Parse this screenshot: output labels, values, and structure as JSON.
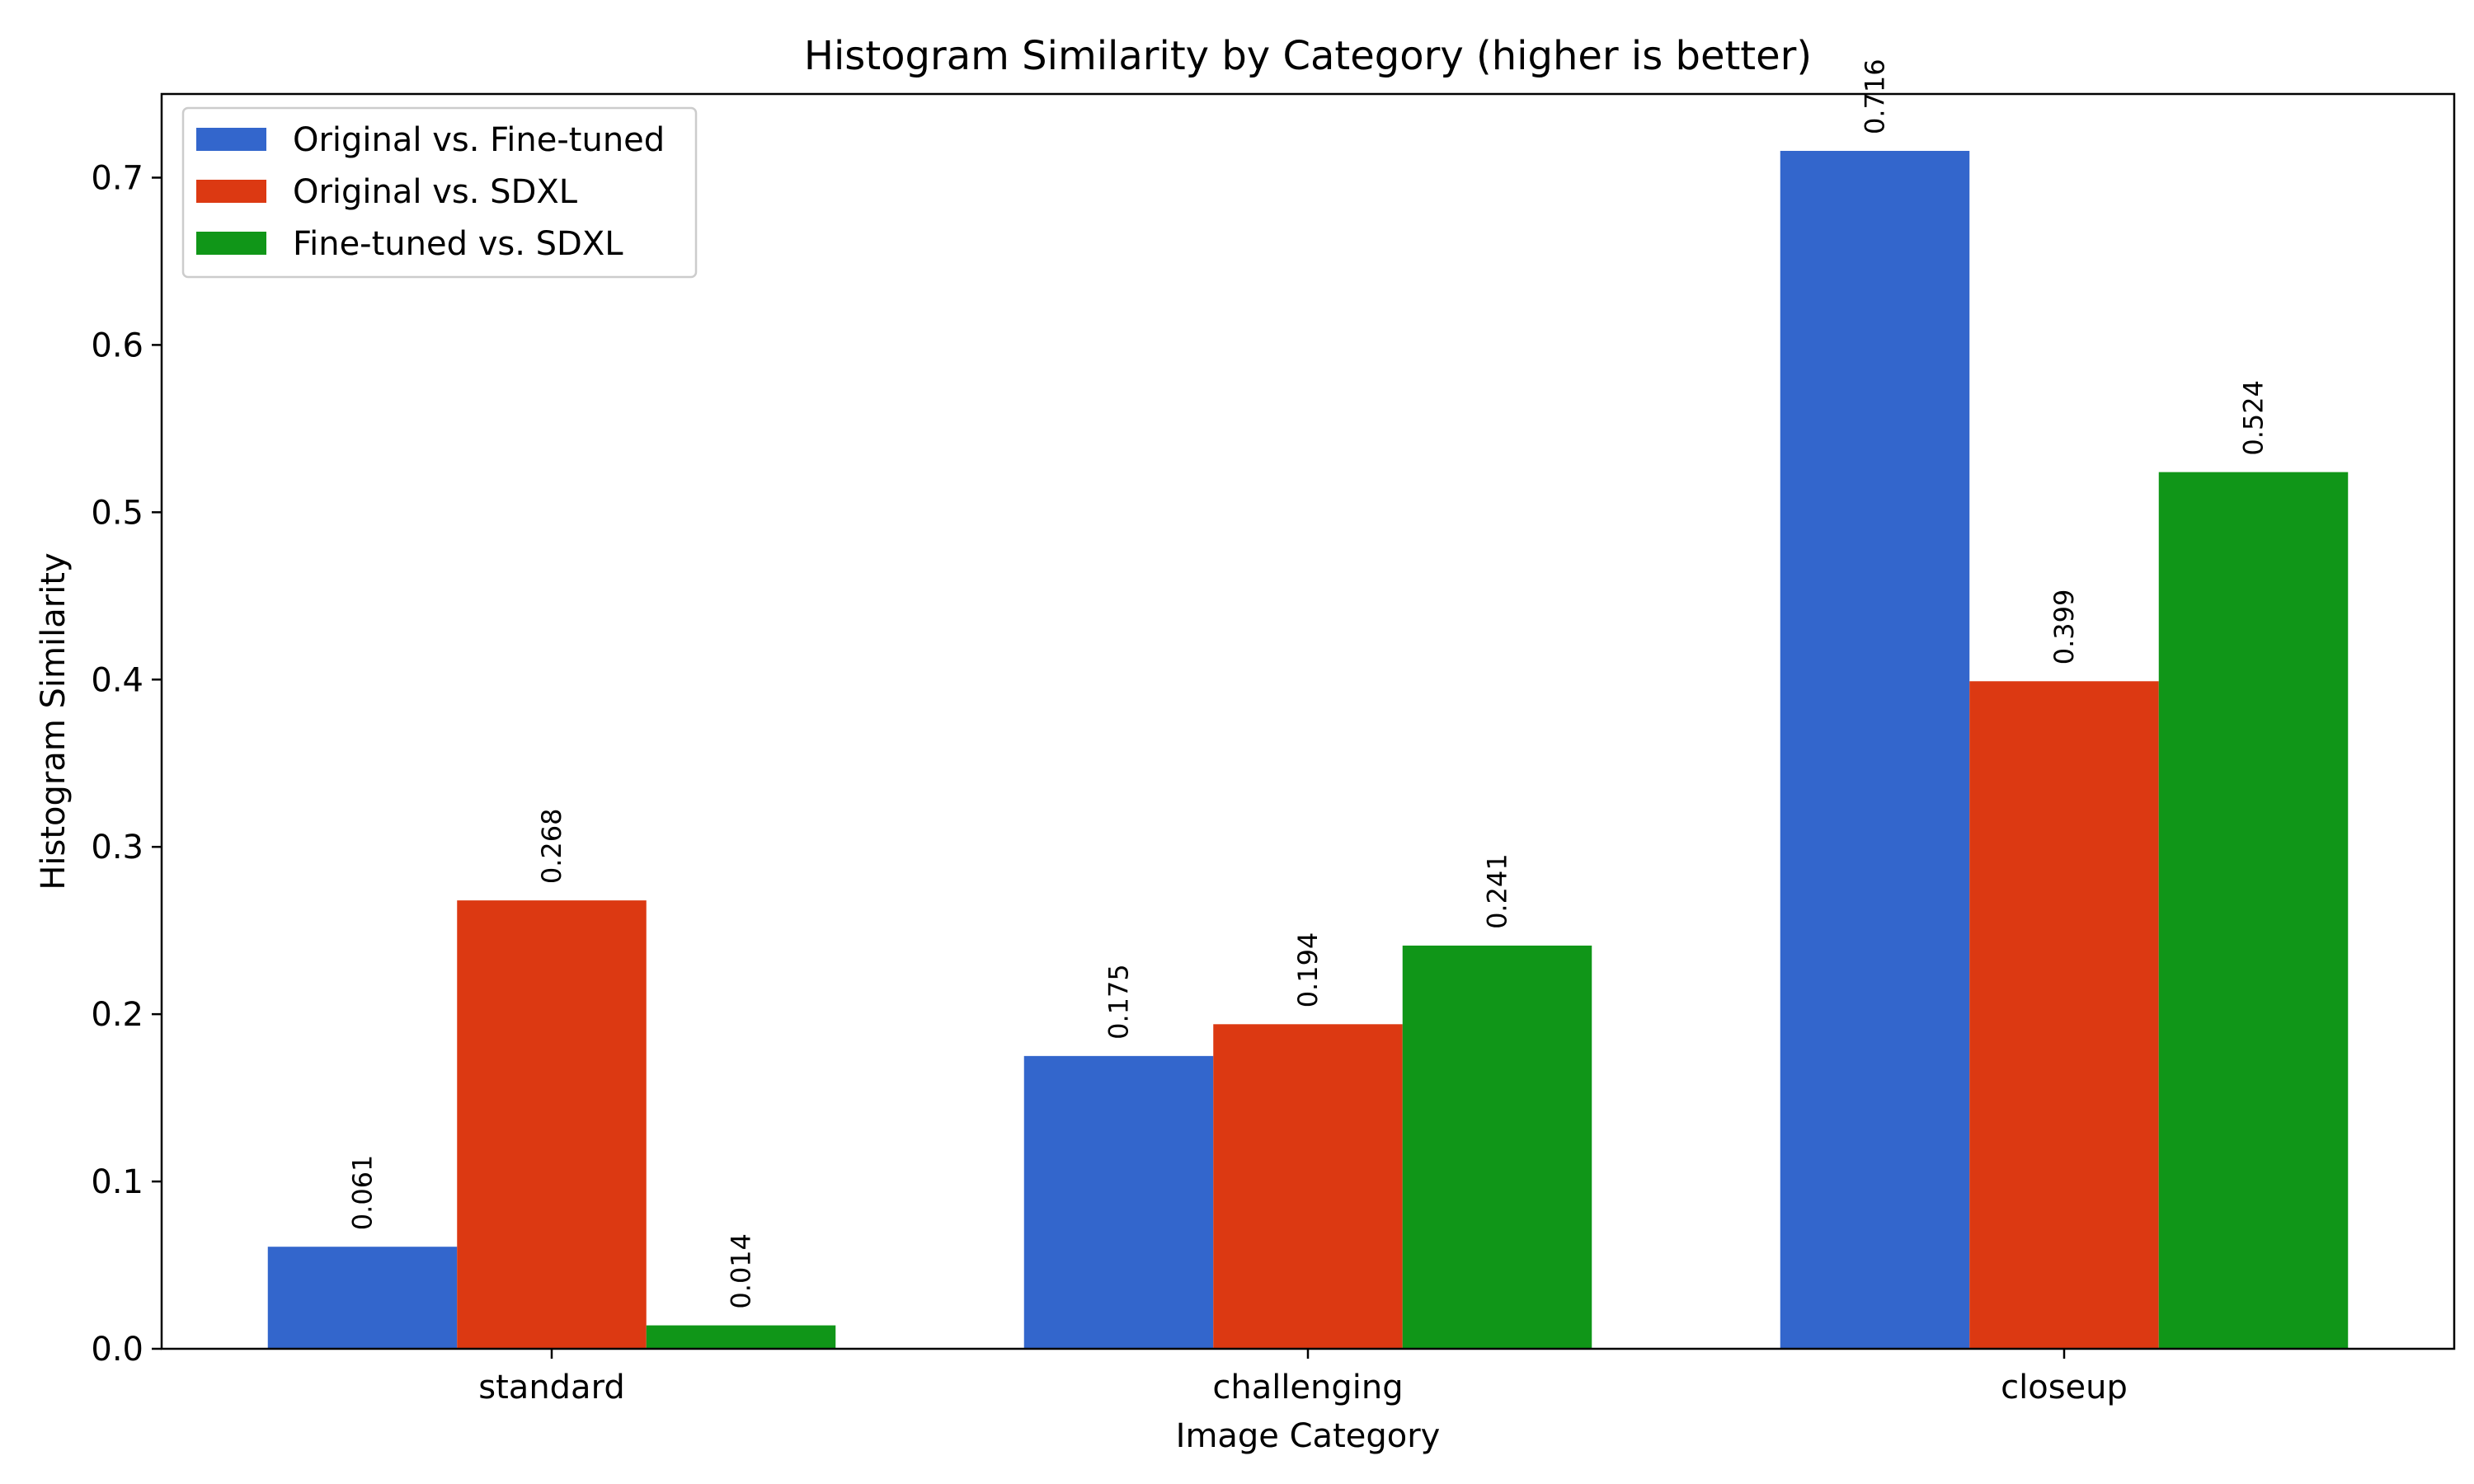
{
  "chart_data": {
    "type": "bar",
    "title": "Histogram Similarity by Category (higher is better)",
    "xlabel": "Image Category",
    "ylabel": "Histogram Similarity",
    "categories": [
      "standard",
      "challenging",
      "closeup"
    ],
    "series": [
      {
        "name": "Original vs. Fine-tuned",
        "color": "#3366cc",
        "values": [
          0.061,
          0.175,
          0.716
        ],
        "labels": [
          "0.061",
          "0.175",
          "0.716"
        ]
      },
      {
        "name": "Original vs. SDXL",
        "color": "#dc3912",
        "values": [
          0.268,
          0.194,
          0.399
        ],
        "labels": [
          "0.268",
          "0.194",
          "0.399"
        ]
      },
      {
        "name": "Fine-tuned vs. SDXL",
        "color": "#109618",
        "values": [
          0.014,
          0.241,
          0.524
        ],
        "labels": [
          "0.014",
          "0.241",
          "0.524"
        ]
      }
    ],
    "ylim": [
      0,
      0.75
    ],
    "yticks": [
      0.0,
      0.1,
      0.2,
      0.3,
      0.4,
      0.5,
      0.6,
      0.7
    ],
    "ytick_labels": [
      "0.0",
      "0.1",
      "0.2",
      "0.3",
      "0.4",
      "0.5",
      "0.6",
      "0.7"
    ],
    "grid": false,
    "legend_position": "top-left",
    "data_labels_rotated": true
  }
}
